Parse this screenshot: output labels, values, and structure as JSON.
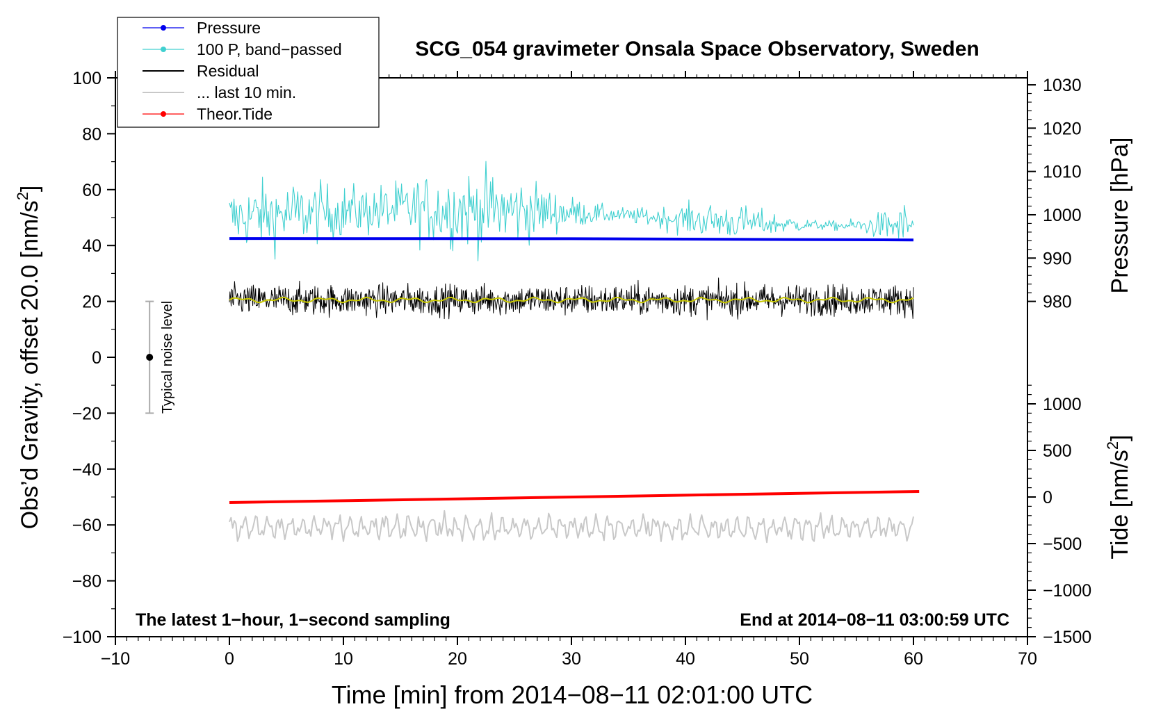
{
  "chart_data": {
    "type": "line",
    "title": "SCG_054 gravimeter Onsala Space Observatory, Sweden",
    "xlabel": "Time [min] from 2014−08−11 02:01:00 UTC",
    "ylabel_left_prefix": "Obs’d Gravity, offset 20.0 [nm/s",
    "ylabel_left_sup": "2",
    "ylabel_left_suffix": "]",
    "ylabel_right_top": "Pressure [hPa]",
    "ylabel_right_bottom_prefix": "Tide [nm/s",
    "ylabel_right_bottom_sup": "2",
    "ylabel_right_bottom_suffix": "]",
    "xlim": [
      -10,
      70
    ],
    "ylim_left": [
      -100,
      100
    ],
    "x_ticks": [
      -10,
      0,
      10,
      20,
      30,
      40,
      50,
      60,
      70
    ],
    "x_tick_labels": [
      "−10",
      "0",
      "10",
      "20",
      "30",
      "40",
      "50",
      "60",
      "70"
    ],
    "y_left_ticks": [
      100,
      80,
      60,
      40,
      20,
      0,
      -20,
      -40,
      -60,
      -80,
      -100
    ],
    "y_left_tick_labels": [
      "100",
      "80",
      "60",
      "40",
      "20",
      "0",
      "−20",
      "−40",
      "−60",
      "−80",
      "−100"
    ],
    "pressure_axis": {
      "ticks": [
        1030,
        1020,
        1010,
        1000,
        990,
        980
      ],
      "tick_labels": [
        "1030",
        "1020",
        "1010",
        "1000",
        "990",
        "980"
      ],
      "ref": [
        980,
        20,
        990,
        35.5
      ]
    },
    "tide_axis": {
      "ticks": [
        1000,
        500,
        0,
        -500,
        -1000,
        -1500
      ],
      "tick_labels": [
        "1000",
        "500",
        "0",
        "−500",
        "−1000",
        "−1500"
      ],
      "ref": [
        -1500,
        -100,
        0,
        -50
      ]
    },
    "series": [
      {
        "name": "Pressure",
        "color": "#0000ee",
        "style": "line-marker",
        "x_range": [
          0,
          60
        ],
        "y_start": 42.5,
        "y_end": 42.0
      },
      {
        "name": "100 P, band−passed",
        "color": "#40d0d0",
        "style": "line-marker",
        "x_range": [
          0,
          60
        ],
        "y_mean": 50,
        "y_spread": 7
      },
      {
        "name": "Residual",
        "color": "#000000",
        "style": "line",
        "x_range": [
          0,
          60
        ],
        "y_mean": 20.5,
        "y_spread": 3
      },
      {
        "name": "... last 10 min.",
        "color": "#c8c8c8",
        "style": "line",
        "x_range": [
          0,
          60
        ],
        "y_mean": -61,
        "y_spread": 3
      },
      {
        "name": "Theor.Tide",
        "color": "#ff0000",
        "style": "line-marker",
        "x_range": [
          0,
          60.5
        ],
        "y_start": -52,
        "y_end": -48
      }
    ],
    "smoothed_residual_color": "#c8c800",
    "noise_bar": {
      "label": "Typical noise level",
      "x": -7,
      "y_center": 0,
      "y_half_range": 20
    },
    "annotation_left": "The latest 1−hour, 1−second sampling",
    "annotation_right": "End at 2014−08−11 03:00:59 UTC",
    "legend": {
      "position": "top-left"
    }
  }
}
